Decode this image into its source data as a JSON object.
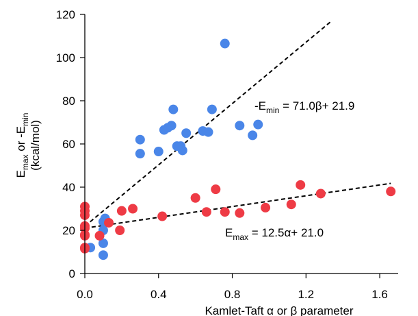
{
  "chart_data": {
    "type": "scatter",
    "xlabel": "Kamlet-Taft α or β parameter",
    "ylabel": {
      "line1_parts": [
        {
          "text": "E",
          "sub": false
        },
        {
          "text": "max",
          "sub": true
        },
        {
          "text": " or -E",
          "sub": false
        },
        {
          "text": "min",
          "sub": true
        }
      ],
      "line2": "(kcal/mol)"
    },
    "xlim": [
      0,
      1.7
    ],
    "ylim": [
      0,
      120
    ],
    "xticks": [
      0.0,
      0.4,
      0.8,
      1.2,
      1.6
    ],
    "xtick_labels": [
      "0.0",
      "0.4",
      "0.8",
      "1.2",
      "1.6"
    ],
    "yticks": [
      0,
      20,
      40,
      60,
      80,
      100,
      120
    ],
    "ytick_labels": [
      "0",
      "20",
      "40",
      "60",
      "80",
      "100",
      "120"
    ],
    "grid": false,
    "series": [
      {
        "key": "emin",
        "color": "#4a86e8",
        "points": [
          [
            0.03,
            12
          ],
          [
            0.1,
            8.5
          ],
          [
            0.1,
            14
          ],
          [
            0.1,
            20
          ],
          [
            0.1,
            24
          ],
          [
            0.11,
            25.5
          ],
          [
            0.3,
            62
          ],
          [
            0.3,
            55.5
          ],
          [
            0.4,
            56.5
          ],
          [
            0.43,
            66.5
          ],
          [
            0.45,
            67.5
          ],
          [
            0.47,
            68.5
          ],
          [
            0.48,
            76
          ],
          [
            0.5,
            59
          ],
          [
            0.52,
            59
          ],
          [
            0.53,
            57
          ],
          [
            0.55,
            65
          ],
          [
            0.64,
            66
          ],
          [
            0.67,
            65.5
          ],
          [
            0.69,
            76
          ],
          [
            0.76,
            106.5
          ],
          [
            0.84,
            68.5
          ],
          [
            0.91,
            64
          ],
          [
            0.94,
            69
          ]
        ],
        "fit": {
          "slope": 71.0,
          "intercept": 21.9,
          "x_range": [
            0,
            1.34
          ]
        }
      },
      {
        "key": "emax",
        "color": "#ee3b45",
        "points": [
          [
            0.0,
            31
          ],
          [
            0.0,
            29
          ],
          [
            0.0,
            27
          ],
          [
            0.0,
            22
          ],
          [
            0.0,
            21
          ],
          [
            0.0,
            18
          ],
          [
            0.0,
            17.5
          ],
          [
            0.0,
            12
          ],
          [
            0.0,
            11.5
          ],
          [
            0.08,
            17.5
          ],
          [
            0.13,
            23.5
          ],
          [
            0.19,
            20
          ],
          [
            0.2,
            29
          ],
          [
            0.26,
            30
          ],
          [
            0.42,
            26.5
          ],
          [
            0.6,
            35
          ],
          [
            0.66,
            28.5
          ],
          [
            0.71,
            39
          ],
          [
            0.76,
            28.5
          ],
          [
            0.84,
            28
          ],
          [
            0.98,
            30.5
          ],
          [
            1.12,
            32
          ],
          [
            1.17,
            41
          ],
          [
            1.28,
            37
          ],
          [
            1.66,
            38
          ]
        ],
        "fit": {
          "slope": 12.5,
          "intercept": 21.0,
          "x_range": [
            0,
            1.66
          ]
        }
      }
    ],
    "annotations": [
      {
        "key": "emin_eq",
        "parts": [
          {
            "text": "-E",
            "sub": false
          },
          {
            "text": "min",
            "sub": true
          },
          {
            "text": " = 71.0β+ 21.9",
            "sub": false
          }
        ]
      },
      {
        "key": "emax_eq",
        "parts": [
          {
            "text": "E",
            "sub": false
          },
          {
            "text": "max",
            "sub": true
          },
          {
            "text": " = 12.5α+ 21.0",
            "sub": false
          }
        ]
      }
    ]
  }
}
